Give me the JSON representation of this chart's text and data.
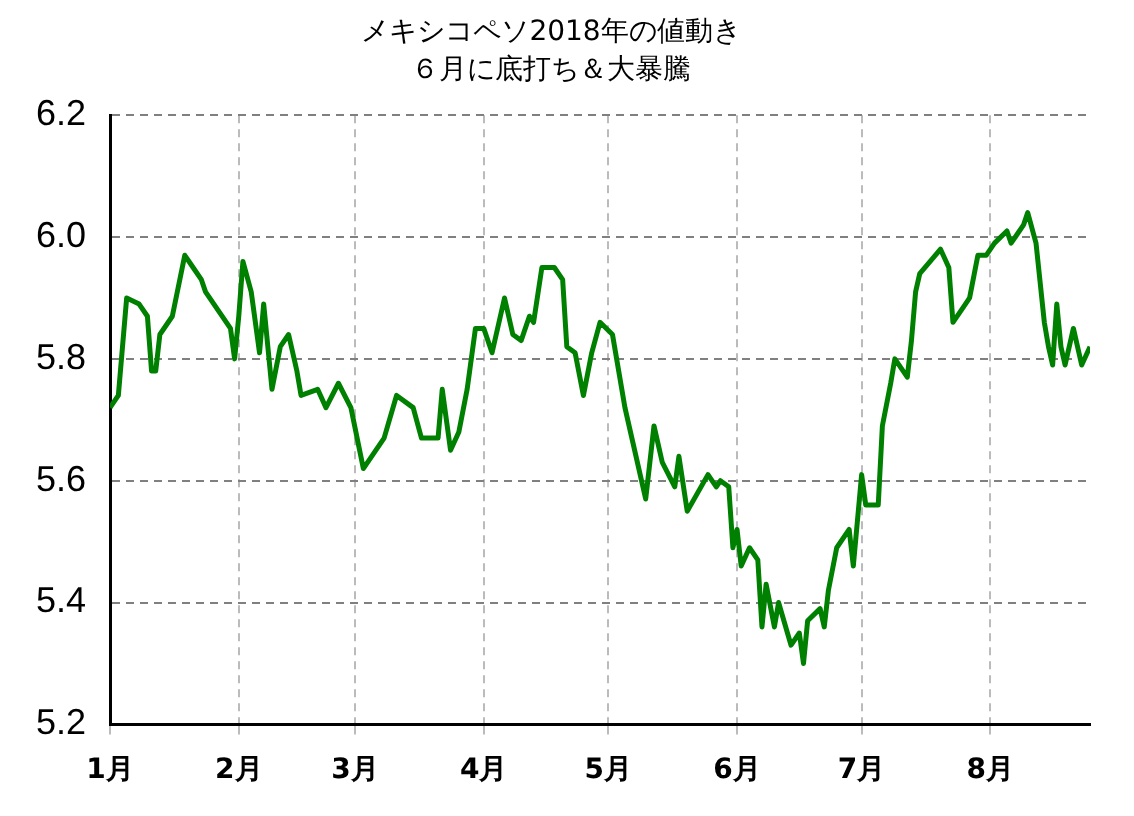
{
  "chart_data": {
    "type": "line",
    "title": "メキシコペソ2018年の値動き",
    "subtitle": "６月に底打ち＆大暴騰",
    "x": [
      "2018-01-01",
      "2018-01-03",
      "2018-01-05",
      "2018-01-08",
      "2018-01-10",
      "2018-01-11",
      "2018-01-12",
      "2018-01-13",
      "2018-01-16",
      "2018-01-19",
      "2018-01-21",
      "2018-01-23",
      "2018-01-24",
      "2018-01-27",
      "2018-01-30",
      "2018-01-31",
      "2018-02-01",
      "2018-02-02",
      "2018-02-04",
      "2018-02-06",
      "2018-02-07",
      "2018-02-09",
      "2018-02-11",
      "2018-02-13",
      "2018-02-15",
      "2018-02-16",
      "2018-02-20",
      "2018-02-22",
      "2018-02-25",
      "2018-02-28",
      "2018-03-03",
      "2018-03-08",
      "2018-03-11",
      "2018-03-15",
      "2018-03-17",
      "2018-03-21",
      "2018-03-22",
      "2018-03-24",
      "2018-03-26",
      "2018-03-28",
      "2018-03-30",
      "2018-04-01",
      "2018-04-03",
      "2018-04-06",
      "2018-04-08",
      "2018-04-10",
      "2018-04-12",
      "2018-04-13",
      "2018-04-15",
      "2018-04-18",
      "2018-04-20",
      "2018-04-21",
      "2018-04-23",
      "2018-04-25",
      "2018-04-27",
      "2018-04-29",
      "2018-05-02",
      "2018-05-05",
      "2018-05-07",
      "2018-05-10",
      "2018-05-12",
      "2018-05-14",
      "2018-05-17",
      "2018-05-18",
      "2018-05-20",
      "2018-05-25",
      "2018-05-27",
      "2018-05-28",
      "2018-05-30",
      "2018-05-31",
      "2018-06-01",
      "2018-06-02",
      "2018-06-04",
      "2018-06-06",
      "2018-06-07",
      "2018-06-08",
      "2018-06-10",
      "2018-06-11",
      "2018-06-14",
      "2018-06-16",
      "2018-06-17",
      "2018-06-18",
      "2018-06-21",
      "2018-06-22",
      "2018-06-23",
      "2018-06-25",
      "2018-06-28",
      "2018-06-29",
      "2018-07-01",
      "2018-07-02",
      "2018-07-05",
      "2018-07-06",
      "2018-07-08",
      "2018-07-09",
      "2018-07-12",
      "2018-07-13",
      "2018-07-14",
      "2018-07-15",
      "2018-07-20",
      "2018-07-22",
      "2018-07-23",
      "2018-07-26",
      "2018-07-27",
      "2018-07-29",
      "2018-07-31",
      "2018-08-02",
      "2018-08-05",
      "2018-08-06",
      "2018-08-09",
      "2018-08-10",
      "2018-08-12",
      "2018-08-14",
      "2018-08-15",
      "2018-08-16",
      "2018-08-17",
      "2018-08-18",
      "2018-08-19",
      "2018-08-21",
      "2018-08-23",
      "2018-08-25"
    ],
    "series": [
      {
        "color": "#008000",
        "values": [
          5.72,
          5.74,
          5.9,
          5.89,
          5.87,
          5.78,
          5.78,
          5.84,
          5.87,
          5.97,
          5.95,
          5.93,
          5.91,
          5.88,
          5.85,
          5.8,
          5.87,
          5.96,
          5.91,
          5.81,
          5.89,
          5.75,
          5.82,
          5.84,
          5.78,
          5.74,
          5.75,
          5.72,
          5.76,
          5.72,
          5.62,
          5.67,
          5.74,
          5.72,
          5.67,
          5.67,
          5.75,
          5.65,
          5.68,
          5.75,
          5.85,
          5.85,
          5.81,
          5.9,
          5.84,
          5.83,
          5.87,
          5.86,
          5.95,
          5.95,
          5.93,
          5.82,
          5.81,
          5.74,
          5.81,
          5.86,
          5.84,
          5.72,
          5.66,
          5.57,
          5.69,
          5.63,
          5.59,
          5.64,
          5.55,
          5.61,
          5.59,
          5.6,
          5.59,
          5.49,
          5.52,
          5.46,
          5.49,
          5.47,
          5.36,
          5.43,
          5.36,
          5.4,
          5.33,
          5.35,
          5.3,
          5.37,
          5.39,
          5.36,
          5.42,
          5.49,
          5.52,
          5.46,
          5.61,
          5.56,
          5.56,
          5.69,
          5.76,
          5.8,
          5.77,
          5.83,
          5.91,
          5.94,
          5.98,
          5.95,
          5.86,
          5.89,
          5.9,
          5.97,
          5.97,
          5.99,
          6.01,
          5.99,
          6.02,
          6.04,
          5.99,
          5.86,
          5.82,
          5.79,
          5.89,
          5.82,
          5.79,
          5.85,
          5.79,
          5.82
        ]
      }
    ],
    "xlim": [
      "2018-01-01",
      "2018-08-25"
    ],
    "xticks": [
      {
        "value": "2018-01",
        "label": "1月"
      },
      {
        "value": "2018-02",
        "label": "2月"
      },
      {
        "value": "2018-03",
        "label": "3月"
      },
      {
        "value": "2018-04",
        "label": "4月"
      },
      {
        "value": "2018-05",
        "label": "5月"
      },
      {
        "value": "2018-06",
        "label": "6月"
      },
      {
        "value": "2018-07",
        "label": "7月"
      },
      {
        "value": "2018-08",
        "label": "8月"
      }
    ],
    "ylim": [
      5.2,
      6.2
    ],
    "yticks": [
      {
        "value": 5.2,
        "label": "5.2"
      },
      {
        "value": 5.4,
        "label": "5.4"
      },
      {
        "value": 5.6,
        "label": "5.6"
      },
      {
        "value": 5.8,
        "label": "5.8"
      },
      {
        "value": 6.0,
        "label": "6.0"
      },
      {
        "value": 6.2,
        "label": "6.2"
      }
    ],
    "grid": true,
    "legend": false,
    "marker": "none",
    "line_style": "solid"
  }
}
